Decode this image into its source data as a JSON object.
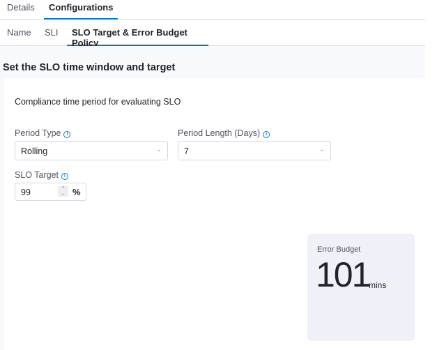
{
  "tabs": [
    {
      "label": "Details"
    },
    {
      "label": "Configurations",
      "active": true
    }
  ],
  "subtabs": [
    {
      "label": "Name"
    },
    {
      "label": "SLI"
    },
    {
      "label": "SLO Target & Error Budget Policy",
      "active": true
    }
  ],
  "section_title": "Set the SLO time window and target",
  "subtitle": "Compliance time period for evaluating SLO",
  "period_type": {
    "label": "Period Type",
    "value": "Rolling"
  },
  "period_length": {
    "label": "Period Length (Days)",
    "value": "7"
  },
  "slo_target": {
    "label": "SLO Target",
    "value": "99",
    "unit": "%"
  },
  "error_budget": {
    "label": "Error Budget",
    "value": "101",
    "unit": "mins"
  },
  "colors": {
    "accent": "#0278d5",
    "card_bg": "#f0f1f8"
  }
}
